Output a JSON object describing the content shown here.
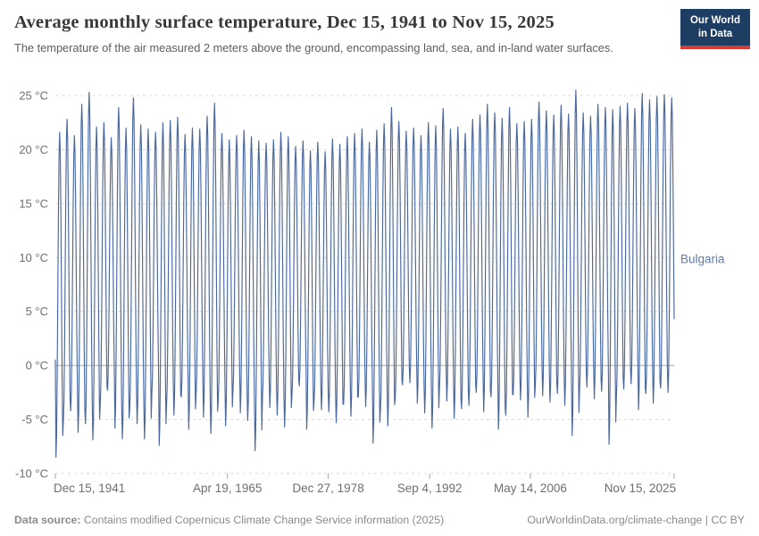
{
  "header": {
    "title": "Average monthly surface temperature, Dec 15, 1941 to Nov 15, 2025",
    "subtitle": "The temperature of the air measured 2 meters above the ground, encompassing land, sea, and in-land water surfaces."
  },
  "logo": {
    "line1": "Our World",
    "line2": "in Data",
    "bg_color": "#1d3d63",
    "bar_color": "#dc3b33"
  },
  "footer": {
    "datasource_label": "Data source:",
    "datasource_text": "Contains modified Copernicus Climate Change Service information (2025)",
    "right_text": "OurWorldinData.org/climate-change | CC BY"
  },
  "chart_data": {
    "type": "line",
    "title": "Average monthly surface temperature, Dec 15, 1941 to Nov 15, 2025",
    "entity_label": "Bulgaria",
    "line_color": "#4a689e",
    "label_color": "#5f7cae",
    "grid_color": "#dadada",
    "zero_line_color": "#a8a8a8",
    "tick_text_color": "#6e6e6e",
    "ylim": [
      -10,
      25
    ],
    "y_ticks": [
      -10,
      -5,
      0,
      5,
      10,
      15,
      20,
      25
    ],
    "y_tick_suffix": " °C",
    "grid": true,
    "legend_position": "right-of-line",
    "x_range_months_total": 1008,
    "x_ticks": [
      {
        "label": "Dec 15, 1941",
        "month_index": 0,
        "align": "start"
      },
      {
        "label": "Apr 19, 1965",
        "month_index": 280,
        "align": "middle"
      },
      {
        "label": "Dec 27, 1978",
        "month_index": 444,
        "align": "middle"
      },
      {
        "label": "Sep 4, 1992",
        "month_index": 609,
        "align": "middle"
      },
      {
        "label": "May 14, 2006",
        "month_index": 773,
        "align": "middle"
      },
      {
        "label": "Nov 15, 2025",
        "month_index": 1007,
        "align": "end"
      }
    ],
    "start_point": {
      "date": "Dec 1941",
      "value": 0.5
    },
    "seasonal_model": "monthly value = mid - amp*cos(2*pi*(month-1)/12); mid=(winter_min+summer_max)/2, amp=(summer_max-winter_min)/2; series runs Dec 1941 through Nov 2025",
    "series": [
      {
        "name": "Bulgaria",
        "annual_extremes": [
          [
            1942,
            -8.5,
            21.6
          ],
          [
            1943,
            -5.2,
            22.8
          ],
          [
            1944,
            -4.2,
            21.3
          ],
          [
            1945,
            -6.2,
            24.2
          ],
          [
            1946,
            -5.4,
            25.3
          ],
          [
            1947,
            -6.9,
            22.1
          ],
          [
            1948,
            -3.7,
            22.5
          ],
          [
            1949,
            -2.3,
            21.1
          ],
          [
            1950,
            -5.8,
            23.9
          ],
          [
            1951,
            -6.8,
            22.0
          ],
          [
            1952,
            -4.1,
            24.8
          ],
          [
            1953,
            -5.4,
            22.3
          ],
          [
            1954,
            -6.8,
            21.9
          ],
          [
            1955,
            -2.6,
            21.6
          ],
          [
            1956,
            -7.4,
            22.5
          ],
          [
            1957,
            -3.6,
            22.7
          ],
          [
            1958,
            -4.6,
            23.0
          ],
          [
            1959,
            -2.9,
            21.4
          ],
          [
            1960,
            -5.9,
            22.0
          ],
          [
            1961,
            -2.7,
            21.9
          ],
          [
            1962,
            -4.8,
            23.1
          ],
          [
            1963,
            -6.3,
            24.3
          ],
          [
            1964,
            -3.2,
            21.5
          ],
          [
            1965,
            -5.6,
            20.9
          ],
          [
            1966,
            -2.4,
            21.3
          ],
          [
            1967,
            -4.4,
            21.8
          ],
          [
            1968,
            -5.1,
            21.2
          ],
          [
            1969,
            -7.9,
            20.8
          ],
          [
            1970,
            -3.0,
            20.6
          ],
          [
            1971,
            -3.9,
            20.9
          ],
          [
            1972,
            -4.6,
            21.6
          ],
          [
            1973,
            -5.7,
            21.2
          ],
          [
            1974,
            -2.8,
            20.3
          ],
          [
            1975,
            -1.9,
            20.8
          ],
          [
            1976,
            -5.9,
            19.9
          ],
          [
            1977,
            -3.4,
            20.7
          ],
          [
            1978,
            -4.1,
            19.8
          ],
          [
            1979,
            -4.3,
            21.0
          ],
          [
            1980,
            -5.3,
            20.5
          ],
          [
            1981,
            -3.6,
            21.2
          ],
          [
            1982,
            -4.7,
            21.5
          ],
          [
            1983,
            -2.9,
            21.9
          ],
          [
            1984,
            -3.8,
            20.7
          ],
          [
            1985,
            -7.2,
            21.8
          ],
          [
            1986,
            -4.2,
            22.4
          ],
          [
            1987,
            -5.6,
            23.9
          ],
          [
            1988,
            -3.1,
            22.6
          ],
          [
            1989,
            -1.8,
            21.7
          ],
          [
            1990,
            -1.6,
            22.0
          ],
          [
            1991,
            -3.5,
            21.3
          ],
          [
            1992,
            -4.4,
            22.5
          ],
          [
            1993,
            -5.8,
            22.2
          ],
          [
            1994,
            -2.2,
            23.8
          ],
          [
            1995,
            -3.3,
            21.9
          ],
          [
            1996,
            -4.9,
            22.1
          ],
          [
            1997,
            -4.0,
            21.5
          ],
          [
            1998,
            -3.7,
            22.8
          ],
          [
            1999,
            -2.5,
            23.2
          ],
          [
            2000,
            -4.3,
            24.2
          ],
          [
            2001,
            -2.9,
            23.4
          ],
          [
            2002,
            -5.9,
            22.9
          ],
          [
            2003,
            -4.6,
            23.9
          ],
          [
            2004,
            -2.7,
            22.4
          ],
          [
            2005,
            -3.2,
            22.6
          ],
          [
            2006,
            -4.8,
            22.8
          ],
          [
            2007,
            -1.9,
            24.4
          ],
          [
            2008,
            -2.8,
            23.6
          ],
          [
            2009,
            -3.4,
            23.2
          ],
          [
            2010,
            -2.6,
            24.1
          ],
          [
            2011,
            -3.7,
            23.3
          ],
          [
            2012,
            -6.5,
            25.5
          ],
          [
            2013,
            -2.3,
            23.4
          ],
          [
            2014,
            -2.0,
            23.1
          ],
          [
            2015,
            -3.1,
            24.2
          ],
          [
            2016,
            -2.4,
            23.9
          ],
          [
            2017,
            -7.3,
            23.7
          ],
          [
            2018,
            -2.9,
            24.0
          ],
          [
            2019,
            -2.2,
            24.3
          ],
          [
            2020,
            -1.7,
            23.8
          ],
          [
            2021,
            -4.1,
            25.2
          ],
          [
            2022,
            -2.6,
            24.6
          ],
          [
            2023,
            -3.5,
            24.9
          ],
          [
            2024,
            -2.1,
            25.1
          ],
          [
            2025,
            -2.5,
            24.8
          ]
        ]
      }
    ]
  }
}
